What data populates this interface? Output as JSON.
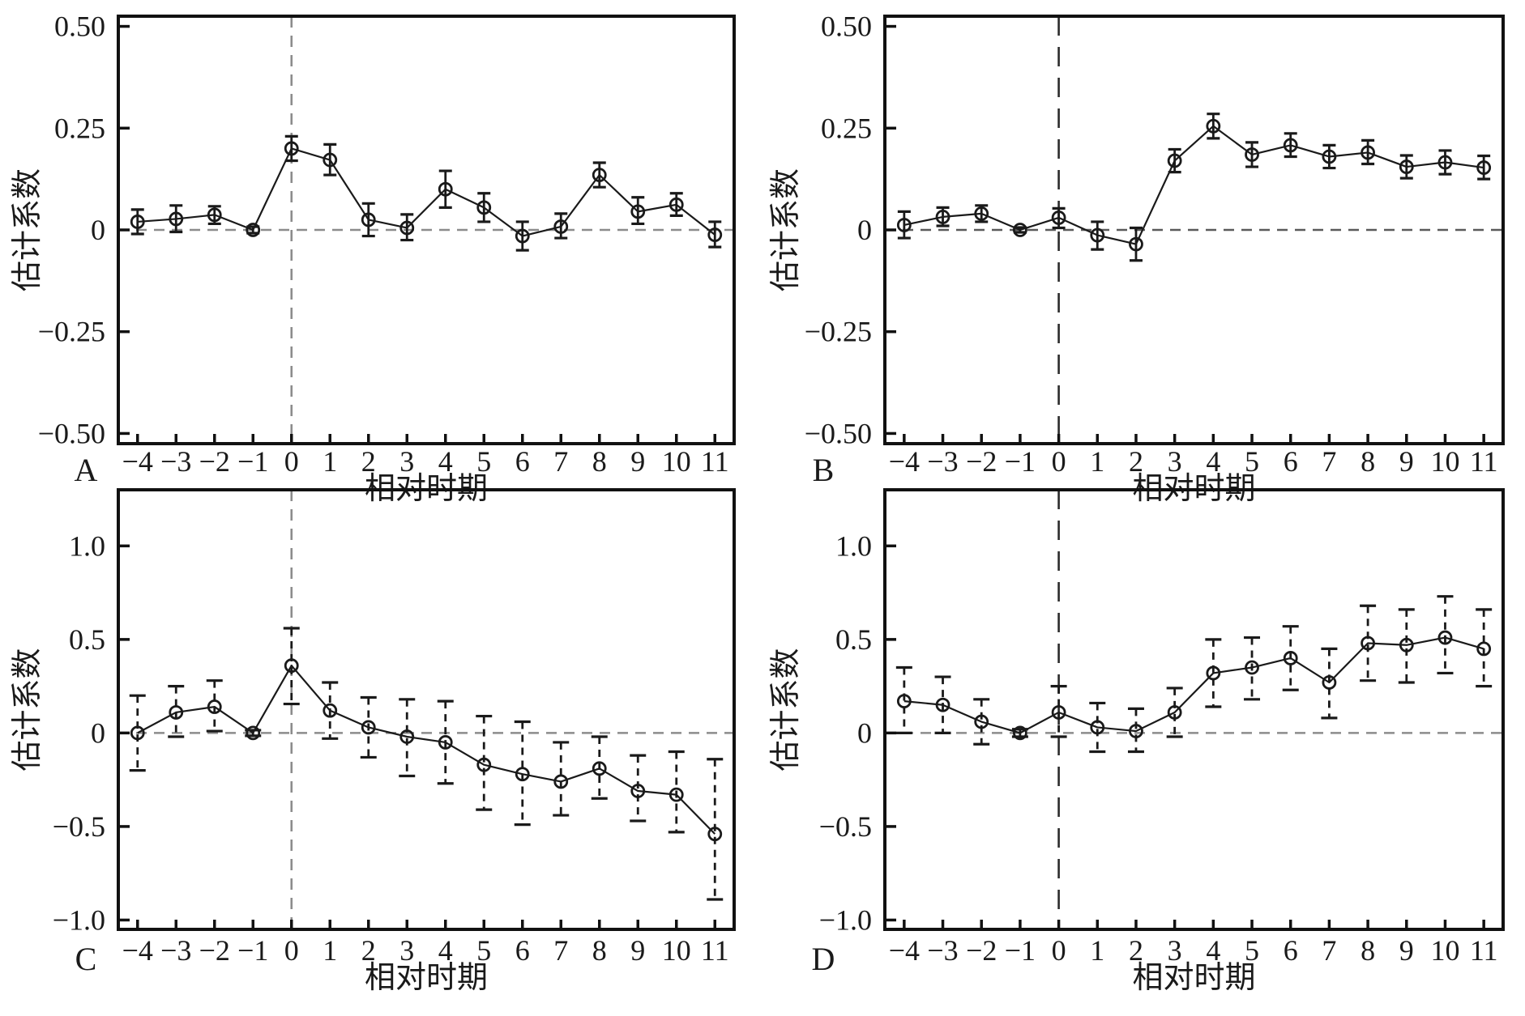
{
  "figure": {
    "background": "#ffffff",
    "axis_color": "#111111",
    "series_color": "#1a1a1a",
    "x_axis_label": "相对时期",
    "y_axis_label": "估计系数",
    "panel_letters": [
      "A",
      "B",
      "C",
      "D"
    ]
  },
  "chart_data": [
    {
      "type": "line",
      "panel_label": "A",
      "xlabel": "相对时期",
      "ylabel": "估计系数",
      "categories": [
        -4,
        -3,
        -2,
        -1,
        0,
        1,
        2,
        3,
        4,
        5,
        6,
        7,
        8,
        9,
        10,
        11
      ],
      "x_tick_labels": [
        "−4",
        "−3",
        "−2",
        "−1",
        "0",
        "1",
        "2",
        "3",
        "4",
        "5",
        "6",
        "7",
        "8",
        "9",
        "10",
        "11"
      ],
      "yticks": [
        {
          "value": 0.5,
          "label": "0.50"
        },
        {
          "value": 0.25,
          "label": "0.25"
        },
        {
          "value": 0,
          "label": "0"
        },
        {
          "value": -0.25,
          "label": "−0.25"
        },
        {
          "value": -0.5,
          "label": "−0.50"
        }
      ],
      "ylim": [
        -0.525,
        0.525
      ],
      "zero_line": true,
      "event_line_x": 0,
      "event_line_color": "#8c8c8c",
      "event_line_dash": "short",
      "zero_line_color": "#8c8c8c",
      "error_bar_style": "solid",
      "series": [
        {
          "name": "估计系数",
          "values": [
            0.02,
            0.027,
            0.037,
            0.0,
            0.2,
            0.172,
            0.025,
            0.005,
            0.1,
            0.055,
            -0.015,
            0.008,
            0.135,
            0.045,
            0.062,
            -0.012
          ],
          "ci_low": [
            -0.01,
            -0.005,
            0.015,
            -0.008,
            0.17,
            0.135,
            -0.015,
            -0.025,
            0.055,
            0.02,
            -0.05,
            -0.02,
            0.105,
            0.015,
            0.035,
            -0.042
          ],
          "ci_high": [
            0.05,
            0.06,
            0.058,
            0.008,
            0.23,
            0.21,
            0.065,
            0.038,
            0.145,
            0.09,
            0.02,
            0.04,
            0.165,
            0.08,
            0.09,
            0.02
          ]
        }
      ]
    },
    {
      "type": "line",
      "panel_label": "B",
      "xlabel": "相对时期",
      "ylabel": "估计系数",
      "categories": [
        -4,
        -3,
        -2,
        -1,
        0,
        1,
        2,
        3,
        4,
        5,
        6,
        7,
        8,
        9,
        10,
        11
      ],
      "x_tick_labels": [
        "−4",
        "−3",
        "−2",
        "−1",
        "0",
        "1",
        "2",
        "3",
        "4",
        "5",
        "6",
        "7",
        "8",
        "9",
        "10",
        "11"
      ],
      "yticks": [
        {
          "value": 0.5,
          "label": "0.50"
        },
        {
          "value": 0.25,
          "label": "0.25"
        },
        {
          "value": 0,
          "label": "0"
        },
        {
          "value": -0.25,
          "label": "−0.25"
        },
        {
          "value": -0.5,
          "label": "−0.50"
        }
      ],
      "ylim": [
        -0.525,
        0.525
      ],
      "zero_line": true,
      "event_line_x": 0,
      "event_line_color": "#2b2b2b",
      "event_line_dash": "long",
      "zero_line_color": "#5a5a5a",
      "error_bar_style": "solid",
      "series": [
        {
          "name": "估计系数",
          "values": [
            0.012,
            0.032,
            0.04,
            0.0,
            0.03,
            -0.013,
            -0.035,
            0.17,
            0.255,
            0.185,
            0.208,
            0.18,
            0.19,
            0.155,
            0.166,
            0.153
          ],
          "ci_low": [
            -0.02,
            0.01,
            0.02,
            -0.006,
            0.005,
            -0.048,
            -0.075,
            0.142,
            0.225,
            0.155,
            0.18,
            0.152,
            0.162,
            0.127,
            0.137,
            0.125
          ],
          "ci_high": [
            0.045,
            0.055,
            0.06,
            0.006,
            0.053,
            0.02,
            0.005,
            0.198,
            0.285,
            0.215,
            0.237,
            0.208,
            0.22,
            0.183,
            0.195,
            0.182
          ]
        }
      ]
    },
    {
      "type": "line",
      "panel_label": "C",
      "xlabel": "相对时期",
      "ylabel": "估计系数",
      "categories": [
        -4,
        -3,
        -2,
        -1,
        0,
        1,
        2,
        3,
        4,
        5,
        6,
        7,
        8,
        9,
        10,
        11
      ],
      "x_tick_labels": [
        "−4",
        "−3",
        "−2",
        "−1",
        "0",
        "1",
        "2",
        "3",
        "4",
        "5",
        "6",
        "7",
        "8",
        "9",
        "10",
        "11"
      ],
      "yticks": [
        {
          "value": 1.0,
          "label": "1.0"
        },
        {
          "value": 0.5,
          "label": "0.5"
        },
        {
          "value": 0,
          "label": "0"
        },
        {
          "value": -0.5,
          "label": "−0.5"
        },
        {
          "value": -1.0,
          "label": "−1.0"
        }
      ],
      "ylim": [
        -1.05,
        1.3
      ],
      "zero_line": true,
      "event_line_x": 0,
      "event_line_color": "#8c8c8c",
      "event_line_dash": "short",
      "zero_line_color": "#8c8c8c",
      "error_bar_style": "dashed",
      "series": [
        {
          "name": "估计系数",
          "values": [
            0.0,
            0.11,
            0.14,
            0.0,
            0.36,
            0.12,
            0.03,
            -0.02,
            -0.05,
            -0.17,
            -0.22,
            -0.26,
            -0.19,
            -0.31,
            -0.33,
            -0.54
          ],
          "ci_low": [
            -0.2,
            -0.02,
            0.01,
            -0.015,
            0.155,
            -0.03,
            -0.13,
            -0.23,
            -0.27,
            -0.41,
            -0.49,
            -0.44,
            -0.35,
            -0.47,
            -0.53,
            -0.89
          ],
          "ci_high": [
            0.2,
            0.25,
            0.28,
            0.015,
            0.56,
            0.27,
            0.19,
            0.18,
            0.17,
            0.09,
            0.06,
            -0.05,
            -0.02,
            -0.12,
            -0.1,
            -0.14
          ]
        }
      ]
    },
    {
      "type": "line",
      "panel_label": "D",
      "xlabel": "相对时期",
      "ylabel": "估计系数",
      "categories": [
        -4,
        -3,
        -2,
        -1,
        0,
        1,
        2,
        3,
        4,
        5,
        6,
        7,
        8,
        9,
        10,
        11
      ],
      "x_tick_labels": [
        "−4",
        "−3",
        "−2",
        "−1",
        "0",
        "1",
        "2",
        "3",
        "4",
        "5",
        "6",
        "7",
        "8",
        "9",
        "10",
        "11"
      ],
      "yticks": [
        {
          "value": 1.0,
          "label": "1.0"
        },
        {
          "value": 0.5,
          "label": "0.5"
        },
        {
          "value": 0,
          "label": "0"
        },
        {
          "value": -0.5,
          "label": "−0.5"
        },
        {
          "value": -1.0,
          "label": "−1.0"
        }
      ],
      "ylim": [
        -1.05,
        1.3
      ],
      "zero_line": true,
      "event_line_x": 0,
      "event_line_color": "#2b2b2b",
      "event_line_dash": "long",
      "zero_line_color": "#8c8c8c",
      "error_bar_style": "dashed",
      "series": [
        {
          "name": "估计系数",
          "values": [
            0.17,
            0.15,
            0.06,
            0.0,
            0.11,
            0.03,
            0.01,
            0.11,
            0.32,
            0.35,
            0.4,
            0.27,
            0.48,
            0.47,
            0.51,
            0.45
          ],
          "ci_low": [
            0.0,
            0.0,
            -0.06,
            -0.02,
            -0.02,
            -0.1,
            -0.1,
            -0.02,
            0.14,
            0.18,
            0.23,
            0.08,
            0.28,
            0.27,
            0.32,
            0.25
          ],
          "ci_high": [
            0.35,
            0.3,
            0.18,
            0.02,
            0.25,
            0.16,
            0.13,
            0.24,
            0.5,
            0.51,
            0.57,
            0.45,
            0.68,
            0.66,
            0.73,
            0.66
          ]
        }
      ]
    }
  ]
}
